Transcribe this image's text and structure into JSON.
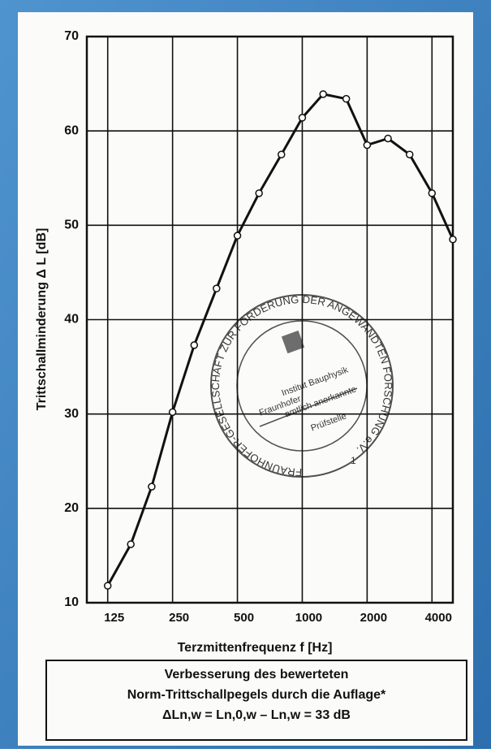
{
  "chart_data": {
    "type": "line",
    "x_label": "Terzmittenfrequenz f [Hz]",
    "y_label": "Trittschallminderung Δ L [dB]",
    "x": [
      125,
      160,
      200,
      250,
      315,
      400,
      500,
      630,
      800,
      1000,
      1250,
      1600,
      2000,
      2500,
      3150,
      4000,
      5000
    ],
    "values": [
      11.8,
      16.2,
      22.3,
      30.2,
      37.3,
      43.3,
      48.9,
      53.4,
      57.5,
      61.4,
      63.9,
      63.4,
      58.5,
      59.2,
      57.5,
      53.4,
      48.5
    ],
    "color": "#111111",
    "x_log": true,
    "xlim": [
      100,
      5000
    ],
    "xticks": [
      125,
      250,
      500,
      1000,
      2000,
      4000
    ],
    "ylim": [
      10,
      70
    ],
    "yticks": [
      10,
      20,
      30,
      40,
      50,
      60,
      70
    ],
    "grid": true,
    "stamp": {
      "ring": "FRAUNHOFER-GESELLSCHAFT ZUR FÖRDERUNG DER ANGEWANDTEN FORSCHUNG e.V.",
      "lines": [
        "Fraunhofer",
        "Institut Bauphysik",
        "amtlich anerkannte",
        "Prüfstelle"
      ],
      "number": "1"
    },
    "note": [
      "Verbesserung des bewerteten",
      "Norm-Trittschallpegels durch die Auflage*",
      "ΔLn,w = Ln,0,w – Ln,w = 33 dB"
    ]
  }
}
